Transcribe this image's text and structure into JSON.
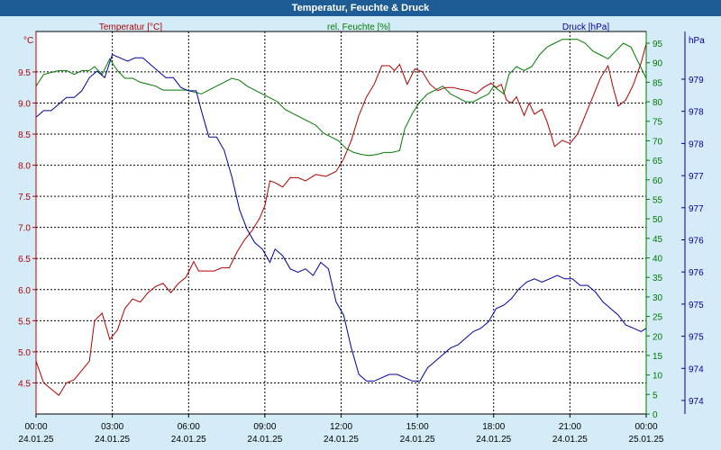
{
  "window": {
    "title": "Temperatur, Feuchte & Druck"
  },
  "colors": {
    "temperature": "#b00000",
    "humidity": "#007a00",
    "pressure": "#00009e",
    "grid": "#000000",
    "plot_bg": "#ffffff",
    "page_bg": "#d4ecf8",
    "title_bg": "#1e5c96"
  },
  "chart_data": {
    "type": "line",
    "title": "Temperatur, Feuchte & Druck",
    "x": {
      "tick_times": [
        "00:00",
        "03:00",
        "06:00",
        "09:00",
        "12:00",
        "15:00",
        "18:00",
        "21:00",
        "00:00"
      ],
      "tick_dates": [
        "24.01.25",
        "24.01.25",
        "24.01.25",
        "24.01.25",
        "24.01.25",
        "24.01.25",
        "24.01.25",
        "24.01.25",
        "25.01.25"
      ],
      "range_hours": [
        0,
        24
      ]
    },
    "axes": {
      "temperature": {
        "label": "Temperatur [°C]",
        "unit": "°C",
        "ylim": [
          4.0,
          10.15
        ],
        "ticks": [
          "4.5",
          "5.0",
          "5.5",
          "6.0",
          "6.5",
          "7.0",
          "7.5",
          "8.0",
          "8.5",
          "9.0",
          "9.5"
        ]
      },
      "humidity": {
        "label": "rel. Feuchte [%]",
        "unit": "%",
        "ylim": [
          0,
          98
        ],
        "ticks": [
          "0",
          "5",
          "10",
          "15",
          "20",
          "25",
          "30",
          "35",
          "40",
          "45",
          "50",
          "55",
          "60",
          "65",
          "70",
          "75",
          "80",
          "85",
          "90",
          "95"
        ]
      },
      "pressure": {
        "label": "Druck [hPa]",
        "unit": "hPa",
        "ylim": [
          973.8,
          979.6
        ],
        "ticks": [
          "974",
          "974",
          "975",
          "975",
          "976",
          "976",
          "977",
          "977",
          "978",
          "978",
          "979"
        ]
      }
    },
    "grid": true,
    "series": [
      {
        "name": "Temperatur [°C]",
        "axis": "temperature",
        "points": [
          [
            0,
            4.85
          ],
          [
            0.3,
            4.5
          ],
          [
            0.6,
            4.4
          ],
          [
            0.9,
            4.3
          ],
          [
            1.2,
            4.5
          ],
          [
            1.5,
            4.55
          ],
          [
            1.8,
            4.7
          ],
          [
            2.1,
            4.85
          ],
          [
            2.3,
            5.5
          ],
          [
            2.6,
            5.62
          ],
          [
            2.9,
            5.2
          ],
          [
            3.2,
            5.35
          ],
          [
            3.5,
            5.7
          ],
          [
            3.8,
            5.85
          ],
          [
            4.1,
            5.8
          ],
          [
            4.4,
            5.95
          ],
          [
            4.7,
            6.05
          ],
          [
            5.0,
            6.1
          ],
          [
            5.3,
            5.95
          ],
          [
            5.6,
            6.1
          ],
          [
            5.9,
            6.2
          ],
          [
            6.2,
            6.45
          ],
          [
            6.4,
            6.3
          ],
          [
            6.7,
            6.3
          ],
          [
            7.0,
            6.3
          ],
          [
            7.3,
            6.35
          ],
          [
            7.6,
            6.35
          ],
          [
            7.9,
            6.6
          ],
          [
            8.2,
            6.8
          ],
          [
            8.5,
            6.95
          ],
          [
            8.8,
            7.15
          ],
          [
            9.0,
            7.35
          ],
          [
            9.2,
            7.75
          ],
          [
            9.4,
            7.72
          ],
          [
            9.7,
            7.65
          ],
          [
            10.0,
            7.8
          ],
          [
            10.3,
            7.8
          ],
          [
            10.6,
            7.75
          ],
          [
            11.0,
            7.85
          ],
          [
            11.4,
            7.82
          ],
          [
            11.8,
            7.9
          ],
          [
            12.1,
            8.1
          ],
          [
            12.4,
            8.4
          ],
          [
            12.7,
            8.8
          ],
          [
            13.0,
            9.1
          ],
          [
            13.3,
            9.3
          ],
          [
            13.6,
            9.6
          ],
          [
            13.9,
            9.6
          ],
          [
            14.1,
            9.52
          ],
          [
            14.3,
            9.62
          ],
          [
            14.6,
            9.3
          ],
          [
            14.9,
            9.55
          ],
          [
            15.2,
            9.5
          ],
          [
            15.5,
            9.3
          ],
          [
            15.8,
            9.2
          ],
          [
            16.1,
            9.25
          ],
          [
            16.4,
            9.25
          ],
          [
            16.7,
            9.22
          ],
          [
            17.0,
            9.2
          ],
          [
            17.3,
            9.15
          ],
          [
            17.6,
            9.25
          ],
          [
            17.9,
            9.32
          ],
          [
            18.1,
            9.25
          ],
          [
            18.3,
            9.3
          ],
          [
            18.5,
            9.05
          ],
          [
            18.7,
            9.0
          ],
          [
            18.9,
            9.1
          ],
          [
            19.2,
            8.8
          ],
          [
            19.4,
            9.0
          ],
          [
            19.6,
            8.82
          ],
          [
            19.9,
            8.9
          ],
          [
            20.1,
            8.7
          ],
          [
            20.4,
            8.3
          ],
          [
            20.7,
            8.4
          ],
          [
            21.0,
            8.35
          ],
          [
            21.3,
            8.5
          ],
          [
            21.6,
            8.8
          ],
          [
            21.9,
            9.1
          ],
          [
            22.2,
            9.4
          ],
          [
            22.5,
            9.6
          ],
          [
            22.7,
            9.25
          ],
          [
            22.9,
            8.95
          ],
          [
            23.2,
            9.05
          ],
          [
            23.5,
            9.3
          ],
          [
            23.8,
            9.65
          ],
          [
            24.0,
            9.95
          ]
        ]
      },
      {
        "name": "rel. Feuchte [%]",
        "axis": "humidity",
        "points": [
          [
            0,
            84
          ],
          [
            0.3,
            87
          ],
          [
            0.6,
            87.5
          ],
          [
            0.9,
            88
          ],
          [
            1.2,
            88
          ],
          [
            1.5,
            87
          ],
          [
            1.8,
            88
          ],
          [
            2.1,
            88
          ],
          [
            2.3,
            89
          ],
          [
            2.6,
            87
          ],
          [
            2.9,
            91
          ],
          [
            3.2,
            88
          ],
          [
            3.5,
            86
          ],
          [
            3.8,
            86
          ],
          [
            4.1,
            85
          ],
          [
            4.4,
            84.5
          ],
          [
            4.7,
            84
          ],
          [
            5.0,
            83
          ],
          [
            5.3,
            83
          ],
          [
            5.6,
            83
          ],
          [
            5.9,
            83
          ],
          [
            6.2,
            82.5
          ],
          [
            6.5,
            82
          ],
          [
            6.8,
            83
          ],
          [
            7.1,
            84
          ],
          [
            7.4,
            85
          ],
          [
            7.7,
            86
          ],
          [
            8.0,
            85.5
          ],
          [
            8.3,
            84
          ],
          [
            8.6,
            83
          ],
          [
            8.9,
            82
          ],
          [
            9.2,
            81
          ],
          [
            9.5,
            80
          ],
          [
            9.8,
            78
          ],
          [
            10.1,
            77
          ],
          [
            10.4,
            76
          ],
          [
            10.7,
            75
          ],
          [
            11.0,
            74
          ],
          [
            11.3,
            72
          ],
          [
            11.6,
            71
          ],
          [
            11.9,
            70
          ],
          [
            12.2,
            68
          ],
          [
            12.5,
            67
          ],
          [
            12.8,
            66.5
          ],
          [
            13.1,
            66.2
          ],
          [
            13.4,
            66.5
          ],
          [
            13.7,
            67
          ],
          [
            14.0,
            67
          ],
          [
            14.3,
            67.5
          ],
          [
            14.5,
            73
          ],
          [
            14.8,
            77
          ],
          [
            15.1,
            80
          ],
          [
            15.4,
            82
          ],
          [
            15.7,
            83
          ],
          [
            16.0,
            84
          ],
          [
            16.3,
            82
          ],
          [
            16.6,
            81
          ],
          [
            16.9,
            80
          ],
          [
            17.2,
            80
          ],
          [
            17.5,
            81
          ],
          [
            17.8,
            82
          ],
          [
            18.0,
            84
          ],
          [
            18.2,
            83
          ],
          [
            18.4,
            82
          ],
          [
            18.6,
            87
          ],
          [
            18.9,
            89
          ],
          [
            19.2,
            88
          ],
          [
            19.5,
            89
          ],
          [
            19.8,
            92
          ],
          [
            20.1,
            94
          ],
          [
            20.4,
            95
          ],
          [
            20.7,
            96
          ],
          [
            21.0,
            96
          ],
          [
            21.3,
            96
          ],
          [
            21.6,
            95
          ],
          [
            21.9,
            93
          ],
          [
            22.2,
            92
          ],
          [
            22.5,
            91
          ],
          [
            22.8,
            93
          ],
          [
            23.1,
            95
          ],
          [
            23.4,
            94
          ],
          [
            23.7,
            90
          ],
          [
            24.0,
            86
          ]
        ]
      },
      {
        "name": "Druck [hPa]",
        "axis": "pressure",
        "points": [
          [
            0,
            978.3
          ],
          [
            0.3,
            978.4
          ],
          [
            0.6,
            978.4
          ],
          [
            0.9,
            978.5
          ],
          [
            1.2,
            978.6
          ],
          [
            1.5,
            978.6
          ],
          [
            1.8,
            978.7
          ],
          [
            2.1,
            978.9
          ],
          [
            2.4,
            979.0
          ],
          [
            2.7,
            978.9
          ],
          [
            3.0,
            979.25
          ],
          [
            3.3,
            979.2
          ],
          [
            3.6,
            979.15
          ],
          [
            3.9,
            979.2
          ],
          [
            4.2,
            979.2
          ],
          [
            4.5,
            979.1
          ],
          [
            4.8,
            979.0
          ],
          [
            5.1,
            978.9
          ],
          [
            5.4,
            978.9
          ],
          [
            5.7,
            978.75
          ],
          [
            6.0,
            978.7
          ],
          [
            6.3,
            978.7
          ],
          [
            6.5,
            978.4
          ],
          [
            6.8,
            978.0
          ],
          [
            7.1,
            978.0
          ],
          [
            7.4,
            977.8
          ],
          [
            7.7,
            977.4
          ],
          [
            8.0,
            976.9
          ],
          [
            8.3,
            976.6
          ],
          [
            8.6,
            976.4
          ],
          [
            8.9,
            976.3
          ],
          [
            9.2,
            976.1
          ],
          [
            9.4,
            976.3
          ],
          [
            9.7,
            976.2
          ],
          [
            10.0,
            976.0
          ],
          [
            10.3,
            975.95
          ],
          [
            10.6,
            976.0
          ],
          [
            10.9,
            975.9
          ],
          [
            11.2,
            976.1
          ],
          [
            11.5,
            976.0
          ],
          [
            11.8,
            975.5
          ],
          [
            12.1,
            975.3
          ],
          [
            12.4,
            974.8
          ],
          [
            12.7,
            974.4
          ],
          [
            13.0,
            974.3
          ],
          [
            13.3,
            974.3
          ],
          [
            13.6,
            974.35
          ],
          [
            13.9,
            974.4
          ],
          [
            14.2,
            974.4
          ],
          [
            14.5,
            974.35
          ],
          [
            14.8,
            974.3
          ],
          [
            15.1,
            974.3
          ],
          [
            15.4,
            974.5
          ],
          [
            15.7,
            974.6
          ],
          [
            16.0,
            974.7
          ],
          [
            16.3,
            974.8
          ],
          [
            16.6,
            974.85
          ],
          [
            16.9,
            974.95
          ],
          [
            17.2,
            975.05
          ],
          [
            17.5,
            975.1
          ],
          [
            17.8,
            975.2
          ],
          [
            18.1,
            975.4
          ],
          [
            18.4,
            975.45
          ],
          [
            18.7,
            975.55
          ],
          [
            19.0,
            975.7
          ],
          [
            19.3,
            975.8
          ],
          [
            19.6,
            975.85
          ],
          [
            19.9,
            975.8
          ],
          [
            20.2,
            975.85
          ],
          [
            20.5,
            975.9
          ],
          [
            20.8,
            975.85
          ],
          [
            21.1,
            975.85
          ],
          [
            21.4,
            975.75
          ],
          [
            21.7,
            975.75
          ],
          [
            22.0,
            975.65
          ],
          [
            22.3,
            975.5
          ],
          [
            22.6,
            975.4
          ],
          [
            22.9,
            975.3
          ],
          [
            23.2,
            975.15
          ],
          [
            23.5,
            975.1
          ],
          [
            23.8,
            975.05
          ],
          [
            24.0,
            975.1
          ]
        ]
      }
    ]
  }
}
